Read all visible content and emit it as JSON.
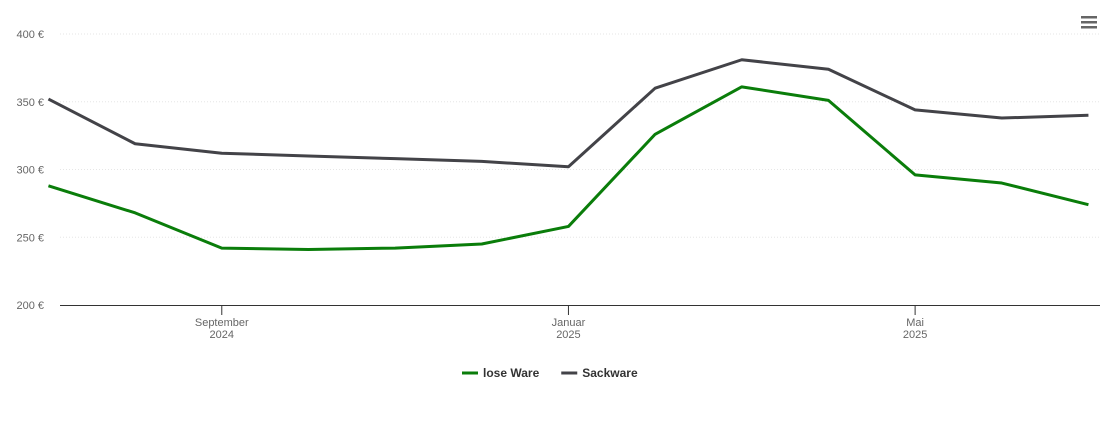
{
  "chart_data": {
    "type": "line",
    "x": [
      "2024-07",
      "2024-08",
      "2024-09",
      "2024-10",
      "2024-11",
      "2024-12",
      "2025-01",
      "2025-02",
      "2025-03",
      "2025-04",
      "2025-05",
      "2025-06",
      "2025-07"
    ],
    "series": [
      {
        "name": "lose Ware",
        "color": "#0a7d0a",
        "values": [
          288,
          268,
          242,
          241,
          242,
          245,
          258,
          326,
          361,
          351,
          296,
          290,
          274
        ]
      },
      {
        "name": "Sackware",
        "color": "#434348",
        "values": [
          352,
          319,
          312,
          310,
          308,
          306,
          302,
          360,
          381,
          374,
          344,
          338,
          340
        ]
      }
    ],
    "xlim": [
      "2024-07",
      "2025-07"
    ],
    "xticks": [
      {
        "value": "2024-09",
        "label": "September 2024"
      },
      {
        "value": "2025-01",
        "label": "Januar 2025"
      },
      {
        "value": "2025-05",
        "label": "Mai 2025"
      }
    ],
    "ylim": [
      200,
      400
    ],
    "yticks": [
      {
        "value": 200,
        "label": "200 €"
      },
      {
        "value": 250,
        "label": "250 €"
      },
      {
        "value": 300,
        "label": "300 €"
      },
      {
        "value": 350,
        "label": "350 €"
      },
      {
        "value": 400,
        "label": "400 €"
      }
    ],
    "grid": true,
    "legend": "bottom"
  }
}
